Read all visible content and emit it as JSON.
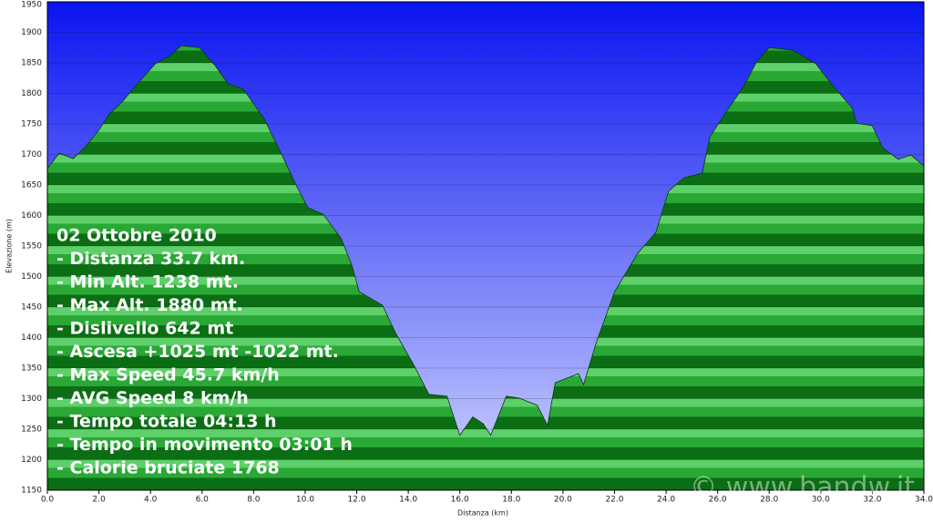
{
  "chart_data": {
    "type": "area",
    "x_label": "Distanza   (km)",
    "y_label": "Elevazione (m)",
    "color": "#1f9a2a",
    "x": [
      0,
      0.46,
      1.0,
      1.5,
      2.0,
      2.4,
      2.9,
      3.5,
      4.2,
      4.7,
      5.2,
      5.9,
      6.5,
      7.0,
      7.6,
      8.4,
      9.1,
      9.6,
      10.1,
      10.7,
      11.4,
      11.8,
      12.1,
      13.0,
      13.5,
      14.2,
      14.8,
      15.5,
      16.0,
      16.5,
      16.9,
      17.2,
      17.8,
      18.3,
      19.0,
      19.4,
      19.7,
      20.6,
      20.8,
      21.3,
      22.0,
      22.9,
      23.6,
      24.1,
      24.7,
      25.4,
      25.7,
      26.4,
      27.0,
      27.5,
      28.0,
      28.9,
      29.8,
      30.5,
      31.2,
      31.4,
      32.0,
      32.4,
      33.0,
      33.5,
      34.0
    ],
    "values": [
      1677,
      1702,
      1693,
      1714,
      1740,
      1766,
      1786,
      1816,
      1849,
      1860,
      1878,
      1875,
      1846,
      1816,
      1807,
      1759,
      1699,
      1654,
      1613,
      1602,
      1562,
      1520,
      1475,
      1453,
      1408,
      1356,
      1307,
      1304,
      1240,
      1270,
      1259,
      1240,
      1304,
      1301,
      1289,
      1256,
      1326,
      1341,
      1323,
      1393,
      1475,
      1538,
      1572,
      1640,
      1662,
      1669,
      1729,
      1774,
      1811,
      1851,
      1875,
      1871,
      1849,
      1811,
      1777,
      1751,
      1747,
      1711,
      1692,
      1699,
      1681
    ],
    "xlim": [
      0,
      34
    ],
    "ylim": [
      1150,
      1950
    ],
    "xticks": [
      {
        "value": 0,
        "label": "0.0"
      },
      {
        "value": 2,
        "label": "2.0"
      },
      {
        "value": 4,
        "label": "4.0"
      },
      {
        "value": 6,
        "label": "6.0"
      },
      {
        "value": 8,
        "label": "8.0"
      },
      {
        "value": 10,
        "label": "10.0"
      },
      {
        "value": 12,
        "label": "12.0"
      },
      {
        "value": 14,
        "label": "14.0"
      },
      {
        "value": 16,
        "label": "16.0"
      },
      {
        "value": 18,
        "label": "18.0"
      },
      {
        "value": 20,
        "label": "20.0"
      },
      {
        "value": 22,
        "label": "22.0"
      },
      {
        "value": 24,
        "label": "24.0"
      },
      {
        "value": 26,
        "label": "26.0"
      },
      {
        "value": 28,
        "label": "28.0"
      },
      {
        "value": 30,
        "label": "30.0"
      },
      {
        "value": 32,
        "label": "32.0"
      },
      {
        "value": 34,
        "label": "34.0"
      }
    ],
    "yticks": [
      1150,
      1200,
      1250,
      1300,
      1350,
      1400,
      1450,
      1500,
      1550,
      1600,
      1650,
      1700,
      1750,
      1800,
      1850,
      1900,
      1950
    ],
    "grid": true,
    "annotations": [
      "02 Ottobre 2010",
      "- Distanza 33.7 km.",
      "- Min Alt. 1238 mt.",
      "- Max Alt. 1880 mt.",
      "- Dislivello 642 mt",
      "- Ascesa +1025 mt -1022 mt.",
      "- Max Speed 45.7 km/h",
      "- AVG Speed 8 km/h",
      "- Tempo totale 04:13 h",
      "- Tempo in movimento 03:01 h",
      "- Calorie bruciate 1768"
    ],
    "watermark": "© www.bandw.it"
  }
}
